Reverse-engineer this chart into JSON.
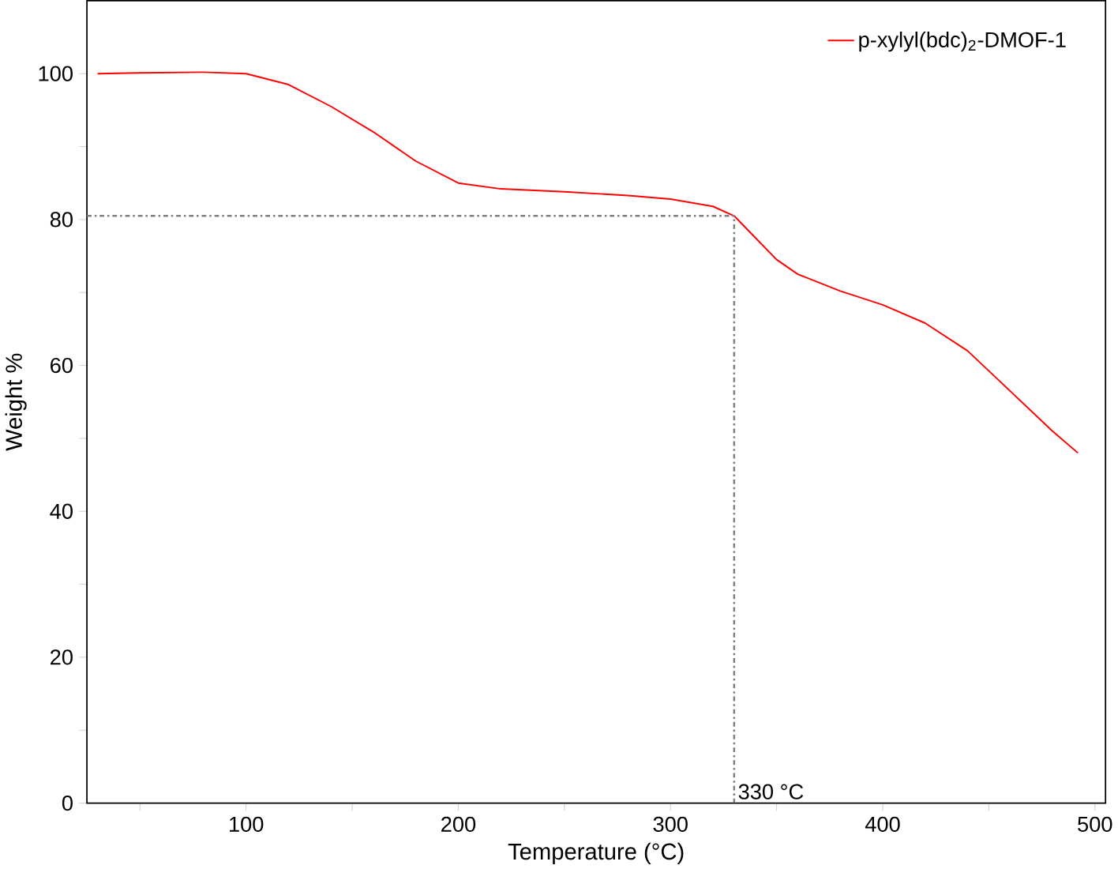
{
  "chart_data": {
    "type": "line",
    "xlabel": "Temperature (°C)",
    "ylabel": "Weight %",
    "xlim": [
      25,
      505
    ],
    "ylim": [
      0,
      110
    ],
    "xticks": [
      {
        "value": 50,
        "label": null
      },
      100,
      {
        "value": 150,
        "label": null
      },
      200,
      {
        "value": 250,
        "label": null
      },
      300,
      {
        "value": 350,
        "label": null
      },
      400,
      {
        "value": 450,
        "label": null
      },
      500
    ],
    "yticks": [
      0,
      {
        "value": 10,
        "label": null
      },
      20,
      {
        "value": 30,
        "label": null
      },
      40,
      {
        "value": 50,
        "label": null
      },
      60,
      {
        "value": 70,
        "label": null
      },
      80,
      {
        "value": 90,
        "label": null
      },
      100
    ],
    "grid": false,
    "legend": "top right",
    "line_style": "solid",
    "marker": "none",
    "series": [
      {
        "name": "p-xylyl(bdc)$_{2}$-DMOF-1",
        "color": "#ff0000",
        "x": [
          30,
          50,
          80,
          100,
          120,
          140,
          160,
          180,
          200,
          220,
          250,
          280,
          300,
          320,
          330,
          340,
          350,
          360,
          380,
          400,
          420,
          440,
          460,
          480,
          492
        ],
        "values": [
          100,
          100.1,
          100.2,
          100,
          98.5,
          95.5,
          92,
          88,
          85,
          84.2,
          83.8,
          83.3,
          82.8,
          81.8,
          80.5,
          77.5,
          74.5,
          72.5,
          70.2,
          68.3,
          65.8,
          62,
          56.5,
          51,
          48
        ]
      }
    ],
    "ref_lines": [
      {
        "axis": "y",
        "value": 80.5,
        "label": null,
        "color": "#808080",
        "line_style": "dashdot"
      },
      {
        "axis": "x",
        "value": 330,
        "label": "330 °C",
        "color": "#808080",
        "line_style": "dashdot"
      }
    ]
  }
}
